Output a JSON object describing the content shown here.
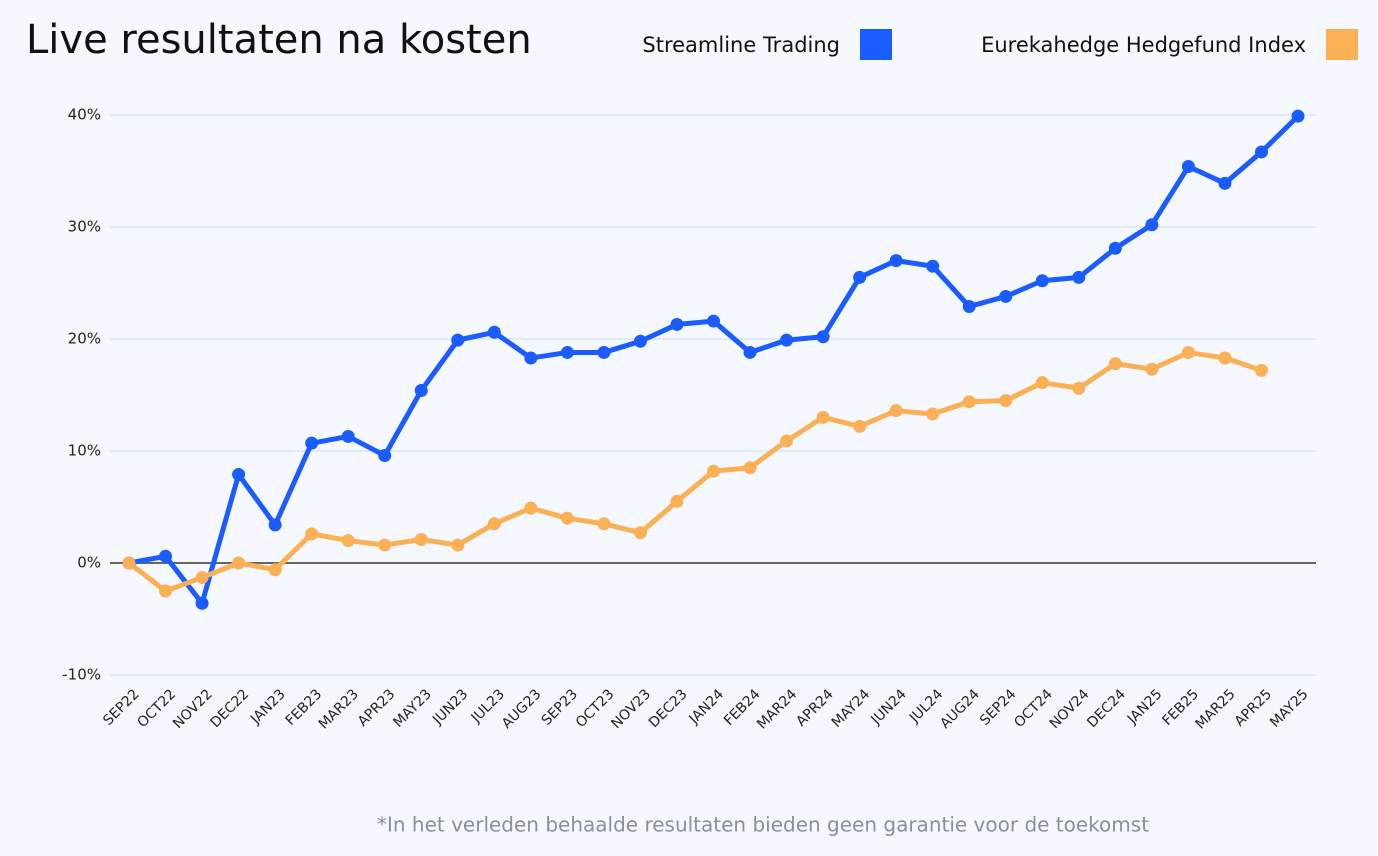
{
  "chart_data": {
    "type": "line",
    "title": "Live resultaten na kosten",
    "note": "*In het verleden behaalde resultaten bieden geen garantie voor de toekomst",
    "categories": [
      "SEP22",
      "OCT22",
      "NOV22",
      "DEC22",
      "JAN23",
      "FEB23",
      "MAR23",
      "APR23",
      "MAY23",
      "JUN23",
      "JUL23",
      "AUG23",
      "SEP23",
      "OCT23",
      "NOV23",
      "DEC23",
      "JAN24",
      "FEB24",
      "MAR24",
      "APR24",
      "MAY24",
      "JUN24",
      "JUL24",
      "AUG24",
      "SEP24",
      "OCT24",
      "NOV24",
      "DEC24",
      "JAN25",
      "FEB25",
      "MAR25",
      "APR25",
      "MAY25"
    ],
    "series": [
      {
        "name": "Streamline Trading",
        "color": "#1a5cff",
        "values": [
          0,
          0.6,
          -3.6,
          7.9,
          3.4,
          10.7,
          11.3,
          9.6,
          15.4,
          19.9,
          20.6,
          18.3,
          18.8,
          18.8,
          19.8,
          21.3,
          21.6,
          18.8,
          19.9,
          20.2,
          25.5,
          27.0,
          26.5,
          22.9,
          23.8,
          25.2,
          25.5,
          28.1,
          30.2,
          35.4,
          33.9,
          36.7,
          39.9
        ]
      },
      {
        "name": "Eurekahedge Hedgefund Index",
        "color": "#fbb055",
        "values": [
          0,
          -2.5,
          -1.3,
          0,
          -0.6,
          2.6,
          2.0,
          1.6,
          2.1,
          1.6,
          3.5,
          4.9,
          4.0,
          3.5,
          2.7,
          5.5,
          8.2,
          8.5,
          10.9,
          13.0,
          12.2,
          13.6,
          13.3,
          14.4,
          14.5,
          16.1,
          15.6,
          17.8,
          17.3,
          18.8,
          18.3,
          17.2,
          null
        ]
      }
    ],
    "ylim": [
      -10,
      40
    ],
    "yticks": [
      {
        "value": -10,
        "label": "-10%"
      },
      {
        "value": 0,
        "label": "0%"
      },
      {
        "value": 10,
        "label": "10%"
      },
      {
        "value": 20,
        "label": "20%"
      },
      {
        "value": 30,
        "label": "30%"
      },
      {
        "value": 40,
        "label": "40%"
      }
    ],
    "grid": true
  }
}
